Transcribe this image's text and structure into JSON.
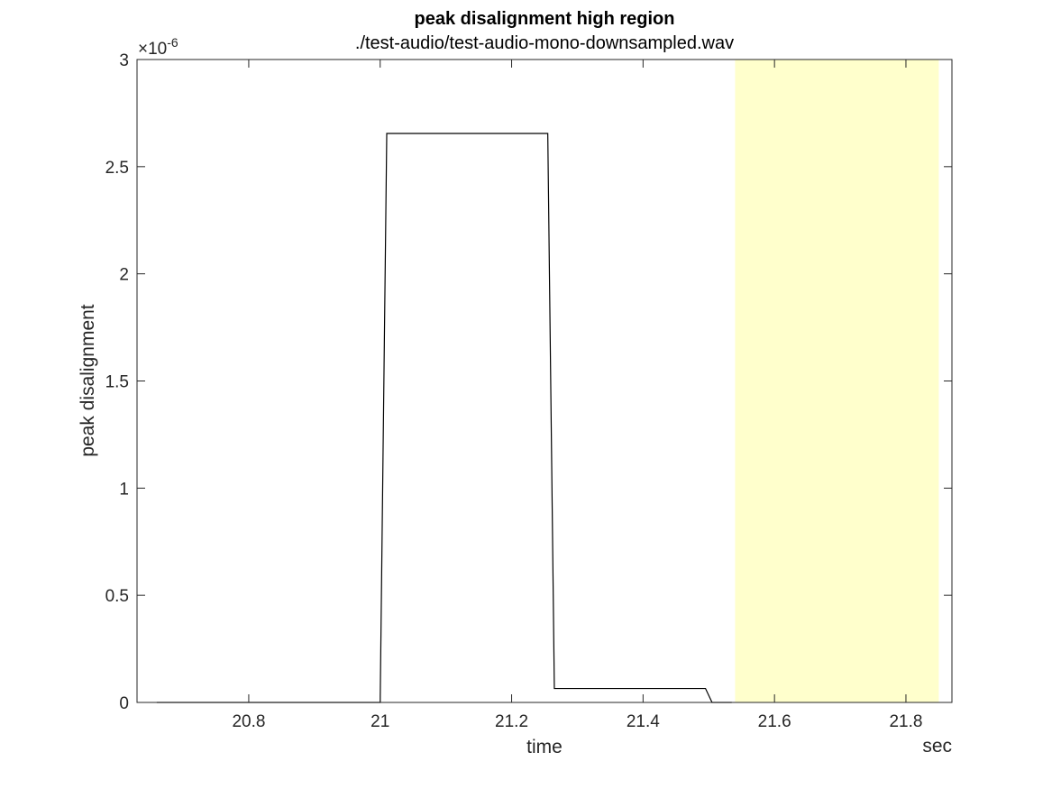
{
  "chart_data": {
    "type": "line",
    "title": "peak disalignment high region",
    "subtitle": "./test-audio/test-audio-mono-downsampled.wav",
    "xlabel": "time",
    "ylabel": "peak disalignment",
    "x_unit_label": "sec",
    "y_exponent": "-6",
    "xlim": [
      20.63,
      21.87
    ],
    "ylim": [
      0,
      3
    ],
    "x_ticks": [
      20.8,
      21.0,
      21.2,
      21.4,
      21.6,
      21.8
    ],
    "x_tick_labels": [
      "20.8",
      "21",
      "21.2",
      "21.4",
      "21.6",
      "21.8"
    ],
    "y_ticks": [
      0,
      0.5,
      1,
      1.5,
      2,
      2.5,
      3
    ],
    "y_tick_labels": [
      "0",
      "0.5",
      "1",
      "1.5",
      "2",
      "2.5",
      "3"
    ],
    "grid": false,
    "highlight_region": {
      "x": [
        21.54,
        21.85
      ],
      "color": "#ffffcc"
    },
    "series": [
      {
        "color": "#000000",
        "points": [
          {
            "x": 20.66,
            "y": 0
          },
          {
            "x": 21.0,
            "y": 0
          },
          {
            "x": 21.01,
            "y": 2.655
          },
          {
            "x": 21.255,
            "y": 2.655
          },
          {
            "x": 21.265,
            "y": 0.065
          },
          {
            "x": 21.495,
            "y": 0.065
          },
          {
            "x": 21.505,
            "y": 0
          },
          {
            "x": 21.535,
            "y": 0
          }
        ]
      }
    ]
  }
}
